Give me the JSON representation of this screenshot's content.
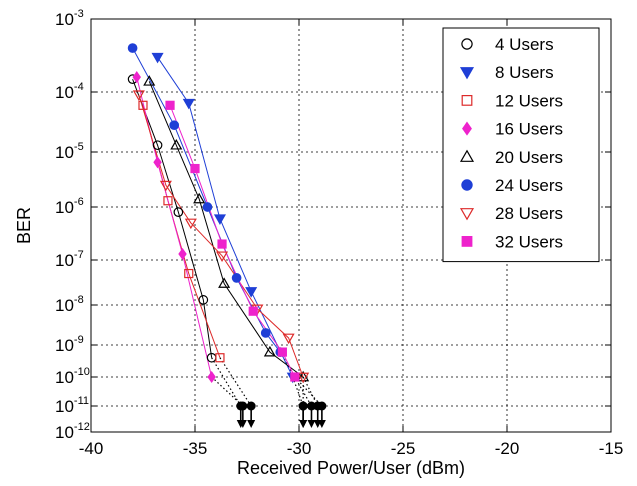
{
  "chart_data": {
    "type": "line",
    "title": "",
    "xlabel": "Received Power/User (dBm)",
    "ylabel": "BER",
    "xlim": [
      -40,
      -15
    ],
    "ylim_exponent": [
      -12,
      -3
    ],
    "y_scale": "log10 (non-uniform decades)",
    "grid": true,
    "legend_position": "top-right",
    "x_ticks": [
      "-40",
      "-35",
      "-30",
      "-25",
      "-20",
      "-15"
    ],
    "y_ticks": [
      {
        "base": "10",
        "exp": "-3",
        "value": 0.001
      },
      {
        "base": "10",
        "exp": "-4",
        "value": 0.0001
      },
      {
        "base": "10",
        "exp": "-5",
        "value": 1e-05
      },
      {
        "base": "10",
        "exp": "-6",
        "value": 1e-06
      },
      {
        "base": "10",
        "exp": "-7",
        "value": 1e-07
      },
      {
        "base": "10",
        "exp": "-8",
        "value": 1e-08
      },
      {
        "base": "10",
        "exp": "-9",
        "value": 1e-09
      },
      {
        "base": "10",
        "exp": "-10",
        "value": 1e-10
      },
      {
        "base": "10",
        "exp": "-11",
        "value": 1e-11
      },
      {
        "base": "10",
        "exp": "-12",
        "value": 1e-12
      }
    ],
    "series": [
      {
        "name": "4 Users",
        "color": "#000000",
        "marker": "circle",
        "filled": false,
        "points": [
          [
            -38,
            0.00015
          ],
          [
            -36.8,
            1.3e-05
          ],
          [
            -35.8,
            8e-07
          ],
          [
            -34.6,
            1.3e-08
          ],
          [
            -34.2,
            4e-10
          ]
        ],
        "extrapolated": [
          [
            -32.8,
            1e-11
          ]
        ]
      },
      {
        "name": "8 Users",
        "color": "#1f3fd6",
        "marker": "triangle-down",
        "filled": true,
        "points": [
          [
            -36.8,
            0.0003
          ],
          [
            -35.3,
            6.5e-05
          ],
          [
            -33.8,
            6e-07
          ],
          [
            -32.3,
            2e-08
          ],
          [
            -30.3,
            1e-10
          ]
        ],
        "extrapolated": [
          [
            -29.8,
            1e-11
          ]
        ]
      },
      {
        "name": "12 Users",
        "color": "#dd2a2a",
        "marker": "square",
        "filled": false,
        "points": [
          [
            -37.5,
            6e-05
          ],
          [
            -36.3,
            1.3e-06
          ],
          [
            -35.3,
            5e-08
          ],
          [
            -33.8,
            4e-10
          ]
        ],
        "extrapolated": [
          [
            -32.3,
            1e-11
          ]
        ]
      },
      {
        "name": "16 Users",
        "color": "#ee22cc",
        "marker": "diamond",
        "filled": true,
        "points": [
          [
            -37.8,
            0.00016
          ],
          [
            -36.8,
            6.5e-06
          ],
          [
            -35.6,
            1.3e-07
          ],
          [
            -34.2,
            1e-10
          ]
        ],
        "extrapolated": [
          [
            -32.7,
            1e-11
          ]
        ]
      },
      {
        "name": "20 Users",
        "color": "#000000",
        "marker": "triangle-up",
        "filled": false,
        "points": [
          [
            -37.2,
            0.00014
          ],
          [
            -35.9,
            1.3e-05
          ],
          [
            -34.8,
            1.4e-06
          ],
          [
            -33.6,
            3e-08
          ],
          [
            -31.4,
            6e-10
          ],
          [
            -29.8,
            1e-10
          ]
        ],
        "extrapolated": [
          [
            -29.8,
            1e-11
          ]
        ]
      },
      {
        "name": "24 Users",
        "color": "#1f3fd6",
        "marker": "circle",
        "filled": true,
        "points": [
          [
            -38,
            0.0004
          ],
          [
            -36,
            2.8e-05
          ],
          [
            -34.4,
            1e-06
          ],
          [
            -33,
            4e-08
          ],
          [
            -31.6,
            2e-09
          ],
          [
            -30.9,
            6e-10
          ]
        ],
        "extrapolated": [
          [
            -29.4,
            1e-11
          ]
        ]
      },
      {
        "name": "28 Users",
        "color": "#dd2a2a",
        "marker": "triangle-down",
        "filled": false,
        "points": [
          [
            -37.7,
            9e-05
          ],
          [
            -36.4,
            2.5e-06
          ],
          [
            -35.2,
            5e-07
          ],
          [
            -33.7,
            1.2e-07
          ],
          [
            -32,
            8e-09
          ],
          [
            -30.5,
            1.5e-09
          ],
          [
            -29.8,
            1e-10
          ]
        ],
        "extrapolated": [
          [
            -29.1,
            1e-11
          ]
        ]
      },
      {
        "name": "32 Users",
        "color": "#ee22cc",
        "marker": "square",
        "filled": true,
        "points": [
          [
            -36.2,
            6e-05
          ],
          [
            -35,
            5e-06
          ],
          [
            -33.7,
            2e-07
          ],
          [
            -32.2,
            7e-09
          ],
          [
            -30.8,
            6e-10
          ],
          [
            -30.2,
            1e-10
          ]
        ],
        "extrapolated": [
          [
            -28.9,
            1e-11
          ]
        ]
      }
    ]
  }
}
